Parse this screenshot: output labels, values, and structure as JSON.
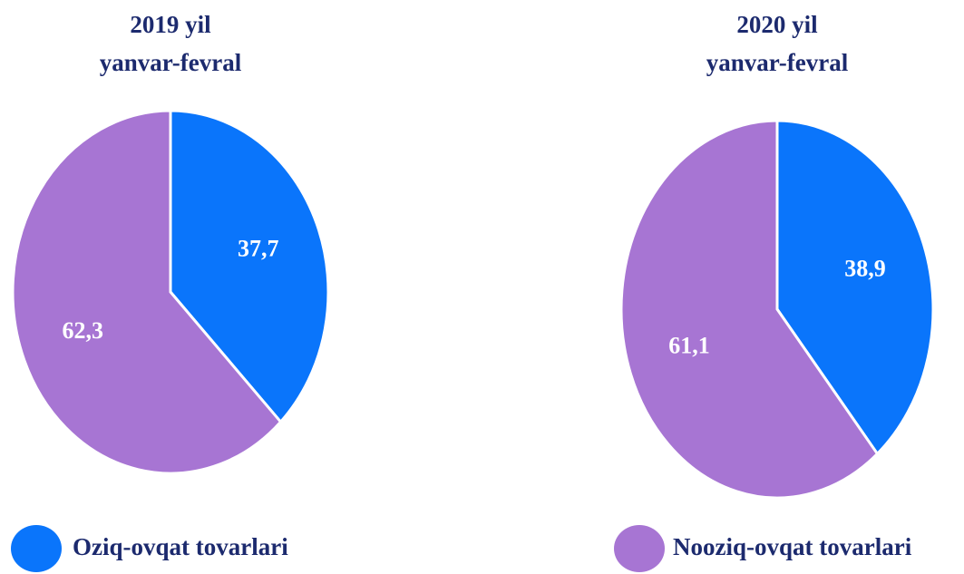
{
  "chart_data": [
    {
      "type": "pie",
      "title": "2019 yil",
      "subtitle": "yanvar-fevral",
      "values": [
        37.7,
        62.3
      ],
      "value_labels": [
        "37,7",
        "62,3"
      ]
    },
    {
      "type": "pie",
      "title": "2020 yil",
      "subtitle": "yanvar-fevral",
      "values": [
        38.9,
        61.1
      ],
      "value_labels": [
        "38,9",
        "61,1"
      ]
    }
  ],
  "legend": [
    {
      "name": "Oziq-ovqat tovarlari",
      "color": "#0a75fb"
    },
    {
      "name": "Nooziq-ovqat tovarlari",
      "color": "#a775d3"
    }
  ]
}
